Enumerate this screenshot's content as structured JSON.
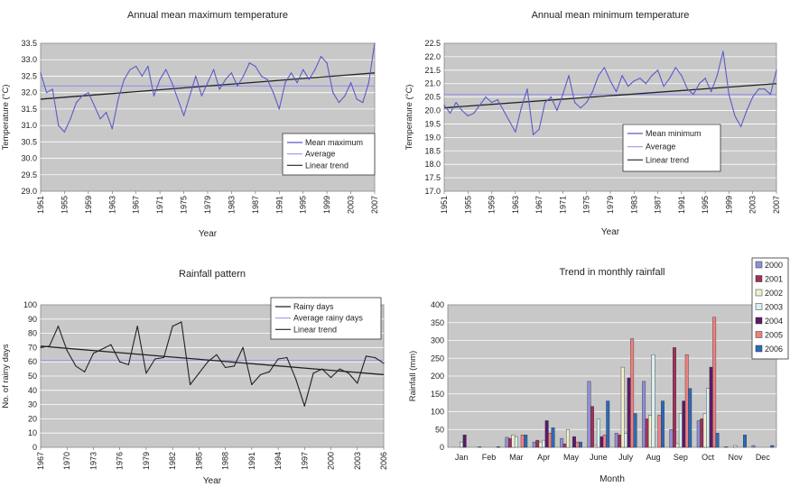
{
  "chart_data": [
    {
      "type": "line",
      "title": "Annual mean maximum temperature",
      "xlabel": "Year",
      "ylabel": "Temperature (°C)",
      "ylim": [
        29.0,
        33.5
      ],
      "xlim": [
        1951,
        2007
      ],
      "y_ticks": [
        "29.0",
        "29.5",
        "30.0",
        "30.5",
        "31.0",
        "31.5",
        "32.0",
        "32.5",
        "33.0",
        "33.5"
      ],
      "x_ticks": [
        "1951",
        "1955",
        "1959",
        "1963",
        "1967",
        "1971",
        "1975",
        "1979",
        "1983",
        "1987",
        "1991",
        "1995",
        "1999",
        "2003",
        "2007"
      ],
      "legend": {
        "position": "lower-right",
        "entries": [
          "Mean maximum",
          "Average",
          "Linear trend"
        ]
      },
      "colors": {
        "series": "#5b5bc8",
        "average": "#9a9ae6",
        "trend": "#222222"
      },
      "series": [
        {
          "name": "Mean maximum",
          "x": [
            1951,
            1952,
            1953,
            1954,
            1955,
            1956,
            1957,
            1958,
            1959,
            1960,
            1961,
            1962,
            1963,
            1964,
            1965,
            1966,
            1967,
            1968,
            1969,
            1970,
            1971,
            1972,
            1973,
            1974,
            1975,
            1976,
            1977,
            1978,
            1979,
            1980,
            1981,
            1982,
            1983,
            1984,
            1985,
            1986,
            1987,
            1988,
            1989,
            1990,
            1991,
            1992,
            1993,
            1994,
            1995,
            1996,
            1997,
            1998,
            1999,
            2000,
            2001,
            2002,
            2003,
            2004,
            2005,
            2006,
            2007
          ],
          "values": [
            32.6,
            32.0,
            32.1,
            31.0,
            30.8,
            31.2,
            31.7,
            31.9,
            32.0,
            31.6,
            31.2,
            31.4,
            30.9,
            31.8,
            32.4,
            32.7,
            32.8,
            32.5,
            32.8,
            31.9,
            32.4,
            32.7,
            32.3,
            31.8,
            31.3,
            31.9,
            32.5,
            31.9,
            32.3,
            32.7,
            32.1,
            32.4,
            32.6,
            32.2,
            32.5,
            32.9,
            32.8,
            32.5,
            32.4,
            32.0,
            31.5,
            32.3,
            32.6,
            32.3,
            32.7,
            32.4,
            32.7,
            33.1,
            32.9,
            32.0,
            31.7,
            31.9,
            32.3,
            31.8,
            31.7,
            32.3,
            33.5
          ]
        },
        {
          "name": "Average",
          "value": 32.2
        },
        {
          "name": "Linear trend",
          "start": 31.8,
          "end": 32.6
        }
      ]
    },
    {
      "type": "line",
      "title": "Annual mean minimum temperature",
      "xlabel": "Year",
      "ylabel": "Temperature (°C)",
      "ylim": [
        17.0,
        22.5
      ],
      "xlim": [
        1951,
        2007
      ],
      "y_ticks": [
        "17.0",
        "17.5",
        "18.0",
        "18.5",
        "19.0",
        "19.5",
        "20.0",
        "20.5",
        "21.0",
        "21.5",
        "22.0",
        "22.5"
      ],
      "x_ticks": [
        "1951",
        "1955",
        "1959",
        "1963",
        "1967",
        "1971",
        "1975",
        "1979",
        "1983",
        "1987",
        "1991",
        "1995",
        "1999",
        "2003",
        "2007"
      ],
      "legend": {
        "position": "lower-right",
        "entries": [
          "Mean minimum",
          "Average",
          "Linear trend"
        ]
      },
      "colors": {
        "series": "#5b5bc8",
        "average": "#9a9ae6",
        "trend": "#222222"
      },
      "series": [
        {
          "name": "Mean minimum",
          "x": [
            1951,
            1952,
            1953,
            1954,
            1955,
            1956,
            1957,
            1958,
            1959,
            1960,
            1961,
            1962,
            1963,
            1964,
            1965,
            1966,
            1967,
            1968,
            1969,
            1970,
            1971,
            1972,
            1973,
            1974,
            1975,
            1976,
            1977,
            1978,
            1979,
            1980,
            1981,
            1982,
            1983,
            1984,
            1985,
            1986,
            1987,
            1988,
            1989,
            1990,
            1991,
            1992,
            1993,
            1994,
            1995,
            1996,
            1997,
            1998,
            1999,
            2000,
            2001,
            2002,
            2003,
            2004,
            2005,
            2006,
            2007
          ],
          "values": [
            20.2,
            19.9,
            20.3,
            20.0,
            19.8,
            19.9,
            20.2,
            20.5,
            20.3,
            20.4,
            20.0,
            19.6,
            19.2,
            20.1,
            20.8,
            19.1,
            19.3,
            20.3,
            20.5,
            20.0,
            20.6,
            21.3,
            20.3,
            20.1,
            20.3,
            20.7,
            21.3,
            21.6,
            21.1,
            20.7,
            21.3,
            20.9,
            21.1,
            21.2,
            21.0,
            21.3,
            21.5,
            20.9,
            21.2,
            21.6,
            21.3,
            20.8,
            20.6,
            21.0,
            21.2,
            20.7,
            21.3,
            22.2,
            20.6,
            19.8,
            19.4,
            20.0,
            20.5,
            20.8,
            20.8,
            20.6,
            21.5
          ]
        },
        {
          "name": "Average",
          "value": 20.6
        },
        {
          "name": "Linear trend",
          "start": 20.1,
          "end": 21.0
        }
      ]
    },
    {
      "type": "line",
      "title": "Rainfall pattern",
      "xlabel": "Year",
      "ylabel": "No. of rainy days",
      "ylim": [
        0,
        100
      ],
      "xlim": [
        1967,
        2006
      ],
      "y_ticks": [
        "0",
        "10",
        "20",
        "30",
        "40",
        "50",
        "60",
        "70",
        "80",
        "90",
        "100"
      ],
      "x_ticks": [
        "1967",
        "1970",
        "1973",
        "1976",
        "1979",
        "1982",
        "1985",
        "1988",
        "1991",
        "1994",
        "1997",
        "2000",
        "2003",
        "2006"
      ],
      "legend": {
        "position": "top-right",
        "entries": [
          "Rainy days",
          "Average rainy days",
          "Linear trend"
        ]
      },
      "colors": {
        "series": "#222222",
        "average": "#9a9ae6",
        "trend": "#222222"
      },
      "series": [
        {
          "name": "Rainy days",
          "x": [
            1967,
            1968,
            1969,
            1970,
            1971,
            1972,
            1973,
            1974,
            1975,
            1976,
            1977,
            1978,
            1979,
            1980,
            1981,
            1982,
            1983,
            1984,
            1985,
            1986,
            1987,
            1988,
            1989,
            1990,
            1991,
            1992,
            1993,
            1994,
            1995,
            1996,
            1997,
            1998,
            1999,
            2000,
            2001,
            2002,
            2003,
            2004,
            2005,
            2006
          ],
          "values": [
            70,
            71,
            85,
            68,
            57,
            53,
            66,
            69,
            72,
            60,
            58,
            85,
            52,
            62,
            63,
            85,
            88,
            44,
            52,
            60,
            65,
            56,
            57,
            70,
            44,
            51,
            53,
            62,
            63,
            48,
            29,
            52,
            55,
            49,
            55,
            52,
            45,
            64,
            63,
            59
          ]
        },
        {
          "name": "Average rainy days",
          "value": 61
        },
        {
          "name": "Linear trend",
          "start": 71,
          "end": 51
        }
      ]
    },
    {
      "type": "bar",
      "title": "Trend in monthly rainfall",
      "xlabel": "Month",
      "ylabel": "Rainfall (mm)",
      "ylim": [
        0,
        400
      ],
      "y_ticks": [
        "0",
        "50",
        "100",
        "150",
        "200",
        "250",
        "300",
        "350",
        "400"
      ],
      "categories": [
        "Jan",
        "Feb",
        "Mar",
        "Apr",
        "May",
        "June",
        "July",
        "Aug",
        "Sep",
        "Oct",
        "Nov",
        "Dec"
      ],
      "legend": {
        "position": "top-right",
        "entries": [
          "2000",
          "2001",
          "2002",
          "2003",
          "2004",
          "2005",
          "2006"
        ]
      },
      "series": [
        {
          "name": "2000",
          "color": "#8e8ed8",
          "values": [
            0,
            2,
            28,
            15,
            25,
            185,
            40,
            185,
            50,
            75,
            2,
            5
          ]
        },
        {
          "name": "2001",
          "color": "#a0305a",
          "values": [
            0,
            0,
            25,
            20,
            10,
            115,
            35,
            80,
            280,
            80,
            0,
            0
          ]
        },
        {
          "name": "2002",
          "color": "#f2f0cc",
          "values": [
            0,
            0,
            35,
            15,
            50,
            5,
            225,
            90,
            10,
            95,
            0,
            0
          ]
        },
        {
          "name": "2003",
          "color": "#d8f0f0",
          "values": [
            15,
            0,
            30,
            20,
            0,
            80,
            40,
            260,
            95,
            165,
            5,
            0
          ]
        },
        {
          "name": "2004",
          "color": "#5a1a6a",
          "values": [
            35,
            0,
            0,
            75,
            30,
            30,
            195,
            0,
            130,
            225,
            0,
            0
          ]
        },
        {
          "name": "2005",
          "color": "#f08080",
          "values": [
            0,
            0,
            35,
            40,
            15,
            35,
            305,
            90,
            260,
            365,
            0,
            0
          ]
        },
        {
          "name": "2006",
          "color": "#2a6ab8",
          "values": [
            0,
            2,
            35,
            55,
            15,
            130,
            95,
            130,
            165,
            40,
            35,
            5
          ]
        }
      ]
    }
  ]
}
